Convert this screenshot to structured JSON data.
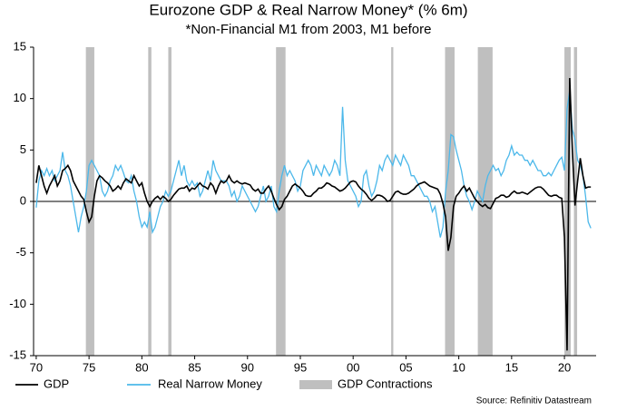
{
  "chart_data": {
    "type": "line",
    "title": "Eurozone GDP & Real Narrow Money* (% 6m)",
    "subtitle": "*Non-Financial M1 from 2003, M1 before",
    "source": "Source: Refinitiv Datastream",
    "xlim": [
      1969.75,
      2023.0
    ],
    "ylim": [
      -15,
      15
    ],
    "xticks": [
      {
        "value": 1970,
        "label": "70"
      },
      {
        "value": 1975,
        "label": "75"
      },
      {
        "value": 1980,
        "label": "80"
      },
      {
        "value": 1985,
        "label": "85"
      },
      {
        "value": 1990,
        "label": "90"
      },
      {
        "value": 1995,
        "label": "95"
      },
      {
        "value": 2000,
        "label": "00"
      },
      {
        "value": 2005,
        "label": "05"
      },
      {
        "value": 2010,
        "label": "10"
      },
      {
        "value": 2015,
        "label": "15"
      },
      {
        "value": 2020,
        "label": "20"
      }
    ],
    "yticks": [
      15,
      10,
      5,
      0,
      -5,
      -10,
      -15
    ],
    "shading": {
      "name": "GDP Contractions",
      "color": "#bfbfbf",
      "periods": [
        [
          1974.7,
          1975.5
        ],
        [
          1980.6,
          1980.9
        ],
        [
          1982.5,
          1982.8
        ],
        [
          1992.7,
          1993.6
        ],
        [
          2003.6,
          2003.8
        ],
        [
          2008.7,
          2009.6
        ],
        [
          2011.8,
          2013.2
        ],
        [
          2020.0,
          2020.6
        ],
        [
          2020.9,
          2021.2
        ]
      ]
    },
    "x": [
      1970.0,
      1970.25,
      1970.5,
      1970.75,
      1971.0,
      1971.25,
      1971.5,
      1971.75,
      1972.0,
      1972.25,
      1972.5,
      1972.75,
      1973.0,
      1973.25,
      1973.5,
      1973.75,
      1974.0,
      1974.25,
      1974.5,
      1974.75,
      1975.0,
      1975.25,
      1975.5,
      1975.75,
      1976.0,
      1976.25,
      1976.5,
      1976.75,
      1977.0,
      1977.25,
      1977.5,
      1977.75,
      1978.0,
      1978.25,
      1978.5,
      1978.75,
      1979.0,
      1979.25,
      1979.5,
      1979.75,
      1980.0,
      1980.25,
      1980.5,
      1980.75,
      1981.0,
      1981.25,
      1981.5,
      1981.75,
      1982.0,
      1982.25,
      1982.5,
      1982.75,
      1983.0,
      1983.25,
      1983.5,
      1983.75,
      1984.0,
      1984.25,
      1984.5,
      1984.75,
      1985.0,
      1985.25,
      1985.5,
      1985.75,
      1986.0,
      1986.25,
      1986.5,
      1986.75,
      1987.0,
      1987.25,
      1987.5,
      1987.75,
      1988.0,
      1988.25,
      1988.5,
      1988.75,
      1989.0,
      1989.25,
      1989.5,
      1989.75,
      1990.0,
      1990.25,
      1990.5,
      1990.75,
      1991.0,
      1991.25,
      1991.5,
      1991.75,
      1992.0,
      1992.25,
      1992.5,
      1992.75,
      1993.0,
      1993.25,
      1993.5,
      1993.75,
      1994.0,
      1994.25,
      1994.5,
      1994.75,
      1995.0,
      1995.25,
      1995.5,
      1995.75,
      1996.0,
      1996.25,
      1996.5,
      1996.75,
      1997.0,
      1997.25,
      1997.5,
      1997.75,
      1998.0,
      1998.25,
      1998.5,
      1998.75,
      1999.0,
      1999.25,
      1999.5,
      1999.75,
      2000.0,
      2000.25,
      2000.5,
      2000.75,
      2001.0,
      2001.25,
      2001.5,
      2001.75,
      2002.0,
      2002.25,
      2002.5,
      2002.75,
      2003.0,
      2003.25,
      2003.5,
      2003.75,
      2004.0,
      2004.25,
      2004.5,
      2004.75,
      2005.0,
      2005.25,
      2005.5,
      2005.75,
      2006.0,
      2006.25,
      2006.5,
      2006.75,
      2007.0,
      2007.25,
      2007.5,
      2007.75,
      2008.0,
      2008.25,
      2008.5,
      2008.75,
      2009.0,
      2009.25,
      2009.5,
      2009.75,
      2010.0,
      2010.25,
      2010.5,
      2010.75,
      2011.0,
      2011.25,
      2011.5,
      2011.75,
      2012.0,
      2012.25,
      2012.5,
      2012.75,
      2013.0,
      2013.25,
      2013.5,
      2013.75,
      2014.0,
      2014.25,
      2014.5,
      2014.75,
      2015.0,
      2015.25,
      2015.5,
      2015.75,
      2016.0,
      2016.25,
      2016.5,
      2016.75,
      2017.0,
      2017.25,
      2017.5,
      2017.75,
      2018.0,
      2018.25,
      2018.5,
      2018.75,
      2019.0,
      2019.25,
      2019.5,
      2019.75,
      2020.0,
      2020.25,
      2020.5,
      2020.75,
      2021.0,
      2021.25,
      2021.5,
      2021.75,
      2022.0,
      2022.25,
      2022.5
    ],
    "series": [
      {
        "name": "GDP",
        "color": "#000000",
        "values": [
          1.8,
          3.5,
          2.5,
          1.5,
          0.8,
          1.5,
          2.0,
          2.5,
          1.5,
          2.0,
          3.0,
          3.2,
          3.5,
          3.0,
          2.0,
          1.5,
          1.0,
          0.5,
          0.2,
          -1.0,
          -2.0,
          -1.5,
          0.5,
          2.0,
          2.5,
          2.3,
          2.0,
          1.8,
          1.5,
          1.0,
          1.2,
          1.5,
          1.2,
          1.8,
          2.2,
          2.0,
          1.8,
          2.5,
          2.0,
          1.5,
          1.8,
          0.8,
          0.0,
          -0.5,
          0.0,
          0.3,
          0.5,
          0.2,
          0.5,
          0.3,
          0.0,
          0.2,
          0.6,
          0.9,
          1.2,
          1.3,
          1.3,
          1.5,
          1.0,
          1.3,
          1.2,
          1.5,
          1.8,
          1.5,
          1.4,
          1.2,
          1.8,
          1.5,
          0.8,
          1.5,
          2.0,
          1.8,
          2.0,
          2.5,
          2.0,
          1.8,
          2.0,
          1.8,
          1.7,
          1.8,
          1.7,
          1.6,
          1.2,
          1.0,
          1.2,
          0.8,
          0.8,
          1.2,
          1.5,
          1.0,
          0.3,
          -0.3,
          -0.8,
          -0.5,
          0.2,
          0.5,
          1.0,
          1.5,
          1.7,
          1.5,
          1.3,
          1.0,
          0.6,
          0.5,
          0.5,
          0.8,
          1.0,
          1.3,
          1.3,
          1.5,
          1.8,
          1.7,
          1.5,
          1.4,
          1.2,
          1.0,
          1.1,
          1.3,
          1.6,
          1.9,
          2.0,
          1.9,
          1.5,
          1.2,
          1.0,
          0.7,
          0.3,
          0.1,
          0.3,
          0.6,
          0.6,
          0.5,
          0.3,
          0.0,
          0.1,
          0.5,
          0.9,
          1.0,
          0.8,
          0.7,
          0.7,
          0.8,
          1.0,
          1.2,
          1.5,
          1.7,
          1.8,
          1.9,
          1.7,
          1.5,
          1.4,
          1.3,
          1.2,
          0.7,
          -0.2,
          -1.5,
          -4.8,
          -3.5,
          -0.5,
          0.5,
          0.8,
          1.2,
          1.5,
          1.0,
          1.3,
          0.8,
          0.3,
          0.0,
          -0.3,
          -0.5,
          -0.3,
          -0.6,
          -0.7,
          -0.2,
          0.3,
          0.4,
          0.6,
          0.6,
          0.4,
          0.5,
          0.8,
          1.0,
          0.8,
          0.8,
          0.9,
          0.8,
          0.7,
          0.9,
          1.1,
          1.3,
          1.4,
          1.4,
          1.2,
          0.9,
          0.6,
          0.5,
          0.6,
          0.6,
          0.4,
          0.3,
          -3.5,
          -14.5,
          12.0,
          5.0,
          -0.4,
          2.0,
          4.2,
          2.5,
          1.3,
          1.4,
          1.4
        ]
      },
      {
        "name": "Real Narrow Money",
        "color": "#4cb8ea",
        "values": [
          -0.6,
          2.0,
          3.0,
          2.5,
          3.2,
          2.5,
          3.0,
          2.0,
          2.5,
          3.0,
          4.8,
          3.0,
          2.5,
          1.5,
          0.0,
          -1.5,
          -3.0,
          -1.5,
          -0.5,
          1.0,
          3.5,
          4.0,
          3.5,
          3.0,
          2.5,
          1.0,
          0.5,
          1.0,
          2.0,
          2.5,
          3.5,
          3.0,
          3.5,
          2.8,
          2.0,
          1.8,
          2.5,
          1.0,
          0.0,
          -1.5,
          -2.5,
          -2.0,
          -2.5,
          -1.0,
          -3.0,
          -2.5,
          -1.5,
          -0.5,
          0.0,
          1.0,
          0.5,
          1.0,
          2.0,
          3.0,
          4.0,
          2.5,
          3.5,
          2.0,
          1.5,
          2.0,
          1.5,
          1.8,
          0.5,
          1.0,
          2.0,
          3.0,
          2.0,
          4.0,
          3.0,
          2.5,
          2.0,
          2.0,
          2.0,
          1.5,
          0.5,
          1.0,
          0.0,
          0.5,
          1.5,
          1.0,
          0.5,
          0.0,
          -0.5,
          -1.0,
          -0.5,
          0.5,
          1.5,
          0.0,
          0.5,
          1.5,
          -0.5,
          -1.0,
          1.0,
          2.5,
          3.5,
          2.5,
          3.0,
          2.5,
          2.0,
          1.0,
          1.5,
          3.0,
          3.5,
          4.0,
          3.5,
          2.5,
          3.5,
          3.0,
          2.5,
          3.5,
          3.0,
          2.5,
          3.0,
          4.0,
          3.5,
          2.5,
          9.2,
          4.0,
          2.0,
          1.5,
          1.0,
          0.5,
          -0.5,
          0.0,
          2.5,
          3.0,
          1.5,
          0.5,
          1.0,
          2.0,
          3.5,
          3.0,
          4.0,
          4.5,
          4.0,
          3.5,
          4.5,
          4.0,
          3.5,
          4.5,
          4.0,
          3.5,
          2.5,
          2.5,
          2.0,
          1.5,
          1.0,
          0.5,
          0.5,
          0.0,
          -1.0,
          -0.5,
          -2.0,
          -3.5,
          -2.5,
          1.0,
          3.0,
          6.5,
          6.3,
          5.0,
          4.0,
          3.0,
          1.5,
          0.5,
          0.0,
          -0.8,
          0.0,
          1.0,
          0.5,
          0.0,
          1.5,
          2.5,
          3.0,
          3.5,
          3.0,
          3.2,
          2.5,
          3.0,
          4.0,
          4.5,
          5.4,
          4.5,
          4.8,
          4.5,
          4.5,
          4.0,
          4.0,
          3.5,
          4.0,
          3.5,
          3.0,
          3.0,
          2.5,
          2.5,
          2.8,
          2.5,
          3.0,
          3.5,
          4.0,
          4.3,
          3.0,
          9.0,
          10.8,
          7.0,
          6.0,
          4.0,
          3.5,
          2.5,
          0.5,
          -2.0,
          -2.6
        ]
      }
    ]
  }
}
